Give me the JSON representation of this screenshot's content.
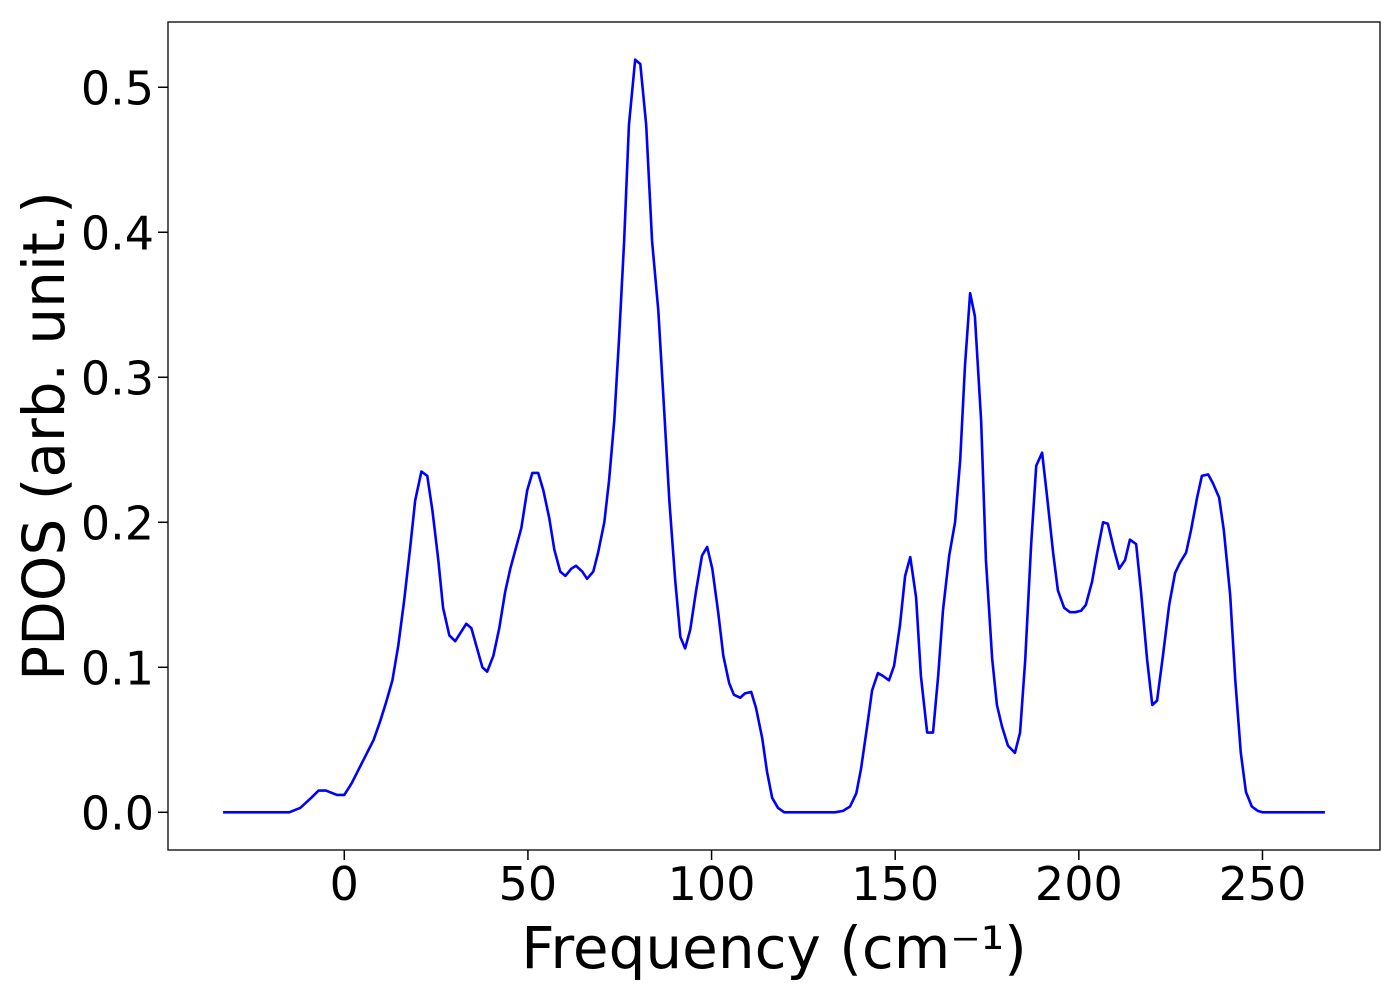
{
  "chart_data": {
    "type": "line",
    "xlabel": "Frequency (cm⁻¹)",
    "ylabel": "PDOS (arb. unit.)",
    "xlim": [
      -48,
      282
    ],
    "ylim": [
      -0.026,
      0.545
    ],
    "xticks": [
      0,
      50,
      100,
      150,
      200,
      250
    ],
    "yticks": [
      {
        "value": 0,
        "label": "0.0"
      },
      0.1,
      0.2,
      0.3,
      0.4,
      0.5
    ],
    "series": [
      {
        "color": "#0000ff",
        "x": [
          -33,
          -15,
          -12,
          -9,
          -7,
          -5,
          -2,
          0,
          2,
          5,
          8,
          9.8,
          11.4,
          13.1,
          14.7,
          16.3,
          18,
          19.3,
          21,
          22.6,
          24,
          25.6,
          26.9,
          28.6,
          30.2,
          33.2,
          34.6,
          37.6,
          38.9,
          40.6,
          42.2,
          43.8,
          45.2,
          48.2,
          49.8,
          51.2,
          52.8,
          54.2,
          55.8,
          57.2,
          58.8,
          60.2,
          61.8,
          63.1,
          64.8,
          66.1,
          67.8,
          69.1,
          70.8,
          72.1,
          73.5,
          74.8,
          76.2,
          77.5,
          79.2,
          80.6,
          82.2,
          83.8,
          85.5,
          87.1,
          88.5,
          90.1,
          91.5,
          92.8,
          94.2,
          95.8,
          97.4,
          98.8,
          100.2,
          101.8,
          103.2,
          104.8,
          106.1,
          107.8,
          109.1,
          110.8,
          112.1,
          113.8,
          115.1,
          116.5,
          118.1,
          119.8,
          133.6,
          135.8,
          137.7,
          139.4,
          140.7,
          142.4,
          143.7,
          145.3,
          146.7,
          148.3,
          149.7,
          151.3,
          152.7,
          154.1,
          155.7,
          157,
          158.7,
          160.3,
          161.7,
          163,
          164.7,
          166.3,
          167.7,
          169,
          170.4,
          171.7,
          173.4,
          174.7,
          176.4,
          177.7,
          179.1,
          180.7,
          182.6,
          184,
          185.4,
          187,
          188.4,
          190,
          191.3,
          193,
          194.3,
          196,
          197.6,
          199,
          200.6,
          201.9,
          203.6,
          205,
          206.6,
          207.9,
          209.6,
          211,
          212.6,
          213.9,
          215.6,
          216.9,
          218.6,
          220,
          221.3,
          222.9,
          224.6,
          226.2,
          227.5,
          229.2,
          230.5,
          232.2,
          233.5,
          235.2,
          236.5,
          238.2,
          239.5,
          241.2,
          242.6,
          244.1,
          245.5,
          247.1,
          248.7,
          250,
          267
        ],
        "values": [
          0,
          0,
          0.003,
          0.01,
          0.015,
          0.015,
          0.012,
          0.012,
          0.02,
          0.035,
          0.05,
          0.063,
          0.076,
          0.091,
          0.115,
          0.146,
          0.184,
          0.215,
          0.235,
          0.232,
          0.208,
          0.174,
          0.141,
          0.122,
          0.118,
          0.13,
          0.127,
          0.1,
          0.097,
          0.108,
          0.127,
          0.152,
          0.168,
          0.196,
          0.222,
          0.234,
          0.234,
          0.222,
          0.203,
          0.181,
          0.166,
          0.163,
          0.168,
          0.17,
          0.166,
          0.161,
          0.166,
          0.179,
          0.2,
          0.229,
          0.27,
          0.326,
          0.394,
          0.474,
          0.519,
          0.516,
          0.474,
          0.394,
          0.346,
          0.277,
          0.215,
          0.16,
          0.121,
          0.113,
          0.126,
          0.153,
          0.177,
          0.183,
          0.168,
          0.138,
          0.108,
          0.089,
          0.081,
          0.079,
          0.082,
          0.083,
          0.072,
          0.051,
          0.028,
          0.01,
          0.003,
          0,
          0,
          0.001,
          0.004,
          0.013,
          0.03,
          0.06,
          0.084,
          0.096,
          0.094,
          0.091,
          0.101,
          0.129,
          0.163,
          0.176,
          0.148,
          0.094,
          0.055,
          0.055,
          0.094,
          0.139,
          0.177,
          0.2,
          0.243,
          0.308,
          0.358,
          0.342,
          0.27,
          0.174,
          0.106,
          0.074,
          0.059,
          0.046,
          0.041,
          0.055,
          0.105,
          0.184,
          0.239,
          0.248,
          0.219,
          0.179,
          0.153,
          0.141,
          0.138,
          0.138,
          0.139,
          0.143,
          0.159,
          0.179,
          0.2,
          0.199,
          0.181,
          0.168,
          0.174,
          0.188,
          0.185,
          0.153,
          0.105,
          0.074,
          0.077,
          0.108,
          0.143,
          0.165,
          0.172,
          0.179,
          0.194,
          0.217,
          0.232,
          0.233,
          0.227,
          0.217,
          0.194,
          0.15,
          0.091,
          0.041,
          0.014,
          0.004,
          0.001,
          0,
          0
        ]
      }
    ]
  }
}
